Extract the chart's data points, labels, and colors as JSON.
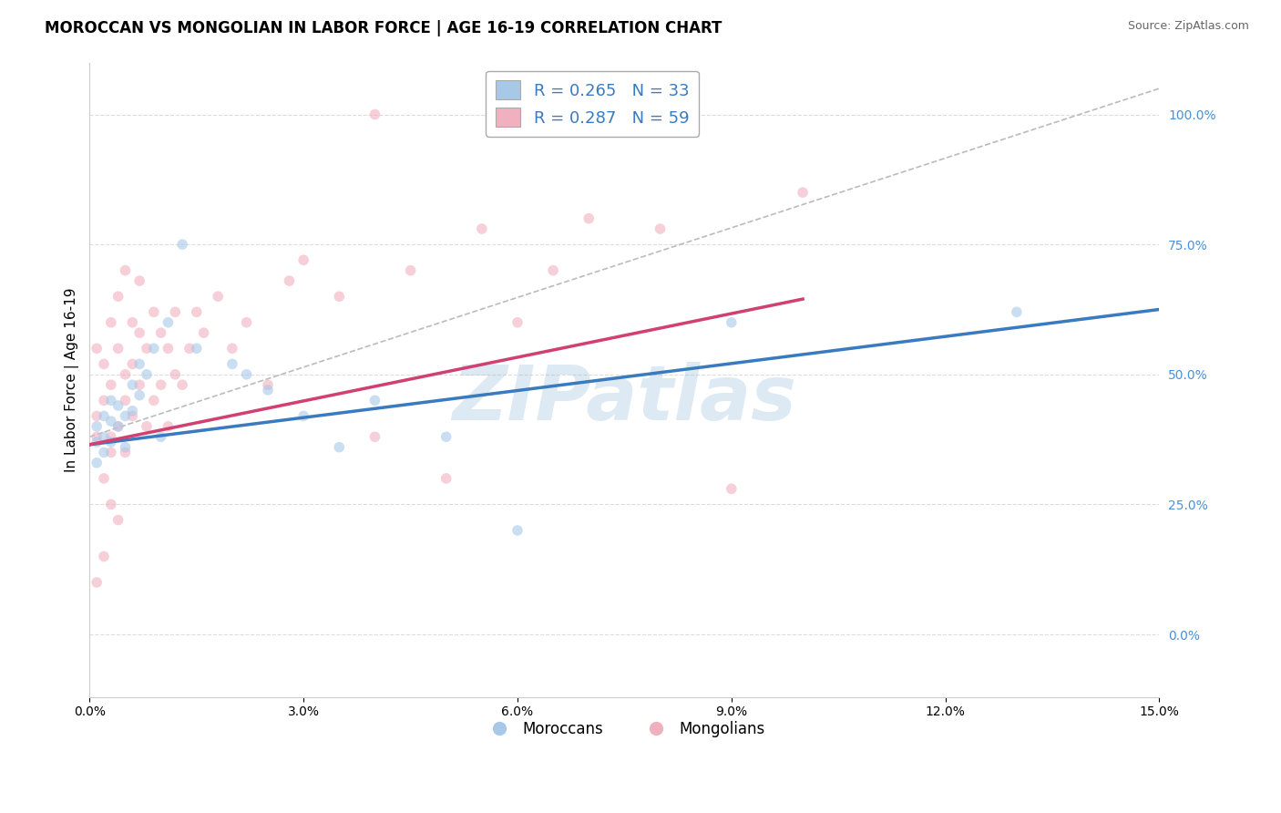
{
  "title": "MOROCCAN VS MONGOLIAN IN LABOR FORCE | AGE 16-19 CORRELATION CHART",
  "source": "Source: ZipAtlas.com",
  "xlabel": "",
  "ylabel": "In Labor Force | Age 16-19",
  "legend_moroccan": "R = 0.265   N = 33",
  "legend_mongolian": "R = 0.287   N = 59",
  "moroccan_color": "#a8c8e8",
  "mongolian_color": "#f0b0c0",
  "moroccan_line_color": "#3a7abf",
  "mongolian_line_color": "#d04070",
  "xlim": [
    0.0,
    0.15
  ],
  "ylim": [
    -0.12,
    1.1
  ],
  "yticks": [
    0.0,
    0.25,
    0.5,
    0.75,
    1.0
  ],
  "ytick_labels": [
    "0.0%",
    "25.0%",
    "50.0%",
    "75.0%",
    "100.0%"
  ],
  "xticks": [
    0.0,
    0.03,
    0.06,
    0.09,
    0.12,
    0.15
  ],
  "xtick_labels": [
    "0.0%",
    "3.0%",
    "6.0%",
    "9.0%",
    "12.0%",
    "15.0%"
  ],
  "moroccan_x": [
    0.001,
    0.001,
    0.001,
    0.002,
    0.002,
    0.002,
    0.003,
    0.003,
    0.003,
    0.004,
    0.004,
    0.005,
    0.005,
    0.006,
    0.006,
    0.007,
    0.007,
    0.008,
    0.009,
    0.01,
    0.011,
    0.013,
    0.015,
    0.02,
    0.022,
    0.025,
    0.03,
    0.035,
    0.04,
    0.05,
    0.06,
    0.09,
    0.13
  ],
  "moroccan_y": [
    0.4,
    0.37,
    0.33,
    0.42,
    0.38,
    0.35,
    0.45,
    0.41,
    0.37,
    0.44,
    0.4,
    0.42,
    0.36,
    0.48,
    0.43,
    0.52,
    0.46,
    0.5,
    0.55,
    0.38,
    0.6,
    0.75,
    0.55,
    0.52,
    0.5,
    0.47,
    0.42,
    0.36,
    0.45,
    0.38,
    0.2,
    0.6,
    0.62
  ],
  "mongolian_x": [
    0.001,
    0.001,
    0.001,
    0.001,
    0.002,
    0.002,
    0.002,
    0.002,
    0.003,
    0.003,
    0.003,
    0.003,
    0.003,
    0.004,
    0.004,
    0.004,
    0.004,
    0.005,
    0.005,
    0.005,
    0.005,
    0.006,
    0.006,
    0.006,
    0.007,
    0.007,
    0.007,
    0.008,
    0.008,
    0.009,
    0.009,
    0.01,
    0.01,
    0.011,
    0.011,
    0.012,
    0.012,
    0.013,
    0.014,
    0.015,
    0.016,
    0.018,
    0.02,
    0.022,
    0.025,
    0.028,
    0.03,
    0.035,
    0.04,
    0.045,
    0.05,
    0.055,
    0.06,
    0.065,
    0.07,
    0.08,
    0.09,
    0.1,
    0.04
  ],
  "mongolian_y": [
    0.42,
    0.38,
    0.55,
    0.1,
    0.45,
    0.3,
    0.52,
    0.15,
    0.48,
    0.35,
    0.6,
    0.38,
    0.25,
    0.55,
    0.4,
    0.65,
    0.22,
    0.45,
    0.5,
    0.35,
    0.7,
    0.52,
    0.6,
    0.42,
    0.58,
    0.48,
    0.68,
    0.55,
    0.4,
    0.62,
    0.45,
    0.58,
    0.48,
    0.55,
    0.4,
    0.62,
    0.5,
    0.48,
    0.55,
    0.62,
    0.58,
    0.65,
    0.55,
    0.6,
    0.48,
    0.68,
    0.72,
    0.65,
    0.38,
    0.7,
    0.3,
    0.78,
    0.6,
    0.7,
    0.8,
    0.78,
    0.28,
    0.85,
    1.0
  ],
  "moroccan_line": {
    "x0": 0.0,
    "y0": 0.365,
    "x1": 0.15,
    "y1": 0.625
  },
  "mongolian_line": {
    "x0": 0.0,
    "y0": 0.365,
    "x1": 0.1,
    "y1": 0.645
  },
  "ref_line": {
    "x0": 0.0,
    "y0": 0.38,
    "x1": 0.15,
    "y1": 1.05
  },
  "background_color": "#ffffff",
  "grid_color": "#dddddd",
  "title_fontsize": 12,
  "label_fontsize": 11,
  "tick_fontsize": 10,
  "marker_size": 70,
  "marker_alpha": 0.6,
  "watermark_text": "ZIPatlas",
  "watermark_color": "#90b8d8",
  "watermark_alpha": 0.3
}
